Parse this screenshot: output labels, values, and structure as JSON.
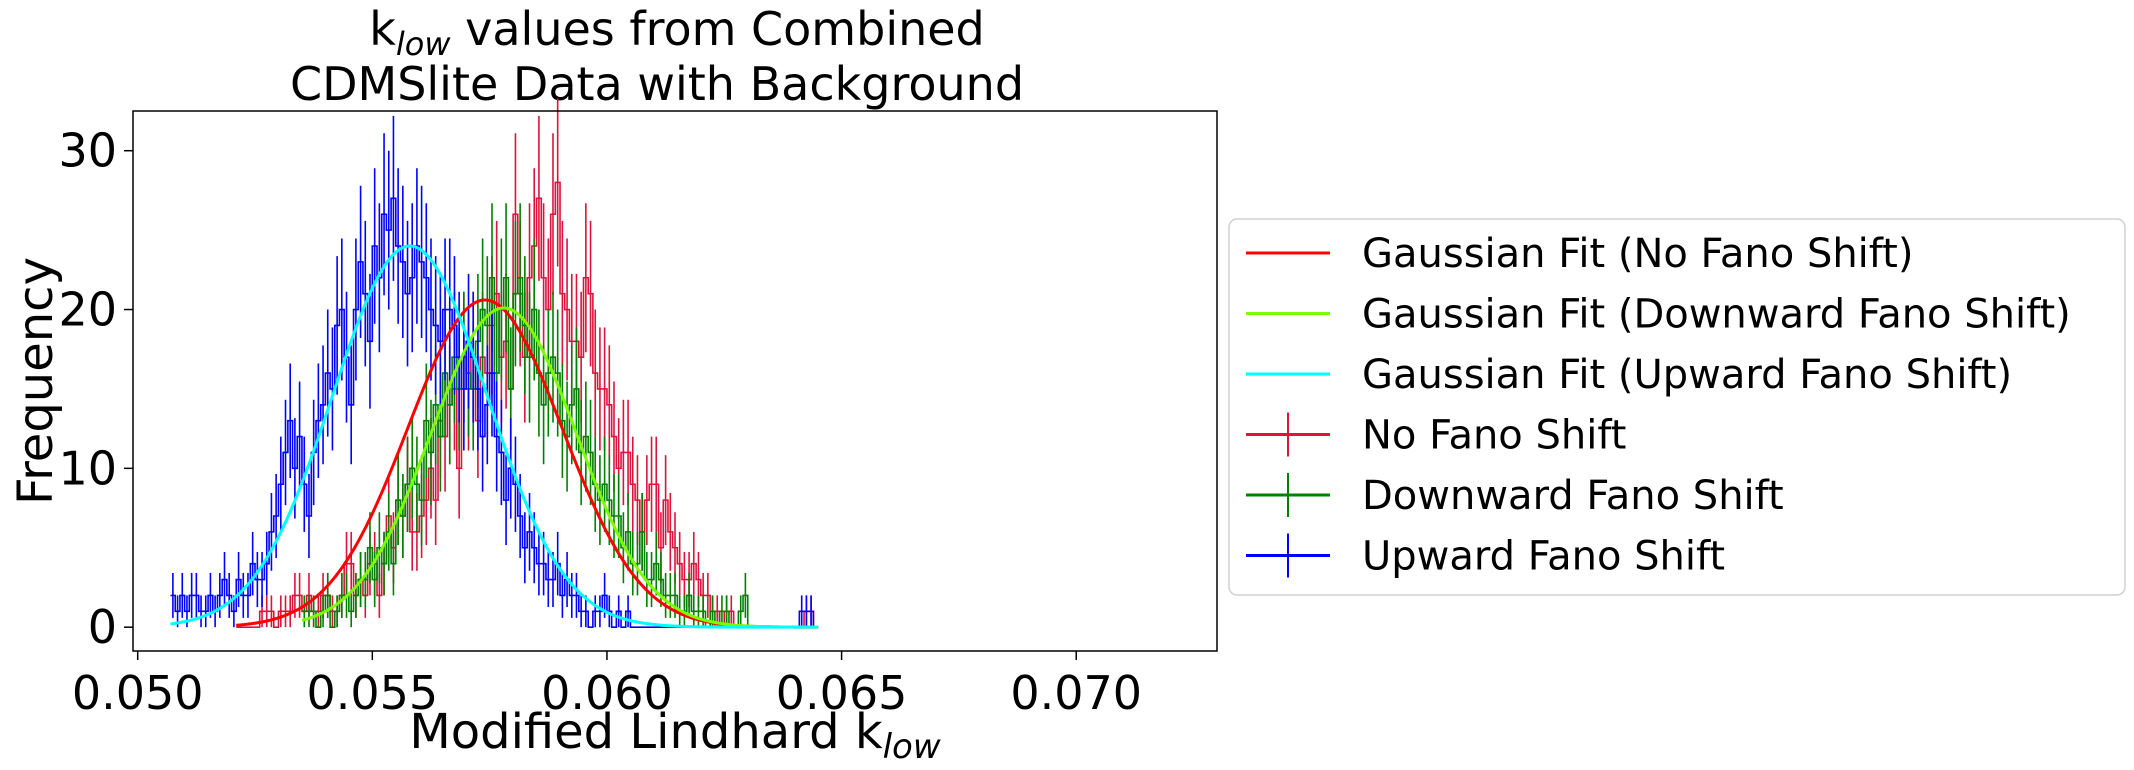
{
  "chart_data": {
    "type": "histogram",
    "title_line1_prefix": "k",
    "title_line1_sub": "low",
    "title_line1_suffix": " values from Combined",
    "title_line2": "CDMSlite Data with Background",
    "xlabel_prefix": "Modified Lindhard k",
    "xlabel_sub": "low",
    "ylabel": "Frequency",
    "xlim": [
      0.0499,
      0.073
    ],
    "ylim": [
      -1.5,
      32.5
    ],
    "xticks": [
      0.05,
      0.055,
      0.06,
      0.065,
      0.07
    ],
    "xtick_labels": [
      "0.050",
      "0.055",
      "0.060",
      "0.065",
      "0.070"
    ],
    "yticks": [
      0,
      10,
      20,
      30
    ],
    "ytick_labels": [
      "0",
      "10",
      "20",
      "30"
    ],
    "bin_width": 0.0001,
    "legend_position": "center-right outside",
    "gaussian_fits": [
      {
        "name": "Gaussian Fit (No Fano Shift)",
        "color": "#ff0000",
        "mean": 0.0574,
        "sigma": 0.00165,
        "amplitude": 20.6,
        "x_range": [
          0.0521,
          0.0645
        ]
      },
      {
        "name": "Gaussian Fit (Downward Fano Shift)",
        "color": "#7cfc00",
        "mean": 0.0578,
        "sigma": 0.00155,
        "amplitude": 20.1,
        "x_range": [
          0.0535,
          0.0645
        ]
      },
      {
        "name": "Gaussian Fit (Upward Fano Shift)",
        "color": "#00ffff",
        "mean": 0.0558,
        "sigma": 0.00165,
        "amplitude": 24.0,
        "x_range": [
          0.0507,
          0.0645
        ]
      }
    ],
    "histograms": [
      {
        "name": "No Fano Shift",
        "color": "#dc143c",
        "x_start": 0.0521,
        "values": [
          0,
          0,
          0,
          0,
          0,
          1,
          1,
          1,
          0,
          1,
          1,
          1,
          2,
          2,
          1,
          2,
          1,
          1,
          2,
          2,
          1,
          1,
          2,
          4,
          4,
          2,
          3,
          2,
          4,
          4,
          2,
          4,
          7,
          5,
          8,
          7,
          9,
          6,
          6,
          7,
          8,
          10,
          8,
          13,
          12,
          14,
          15,
          10,
          17,
          15,
          17,
          13,
          17,
          16,
          19,
          21,
          17,
          18,
          15,
          26,
          21,
          17,
          22,
          24,
          27,
          22,
          20,
          26,
          28,
          21,
          20,
          18,
          18,
          17,
          22,
          21,
          16,
          15,
          15,
          14,
          12,
          10,
          11,
          11,
          9,
          8,
          6,
          8,
          9,
          9,
          5,
          8,
          6,
          5,
          4,
          3,
          3,
          4,
          3,
          2,
          2,
          1,
          1,
          0,
          1,
          1,
          0,
          0,
          0,
          0,
          0,
          0,
          0,
          0,
          0,
          0,
          0,
          0,
          0,
          0,
          0,
          1,
          1,
          0
        ]
      },
      {
        "name": "Downward Fano Shift",
        "color": "#008000",
        "x_start": 0.0535,
        "values": [
          1,
          1,
          1,
          0,
          1,
          2,
          0,
          1,
          2,
          2,
          1,
          2,
          3,
          3,
          5,
          3,
          5,
          4,
          6,
          4,
          8,
          7,
          9,
          10,
          9,
          8,
          13,
          11,
          14,
          12,
          16,
          14,
          17,
          15,
          17,
          16,
          15,
          18,
          20,
          19,
          22,
          16,
          20,
          22,
          15,
          21,
          22,
          19,
          17,
          20,
          16,
          14,
          16,
          17,
          16,
          13,
          12,
          14,
          15,
          11,
          12,
          11,
          9,
          8,
          9,
          8,
          7,
          7,
          5,
          6,
          4,
          4,
          6,
          3,
          3,
          4,
          3,
          2,
          2,
          2,
          1,
          1,
          2,
          1,
          1,
          1,
          0,
          1,
          0,
          1,
          1,
          0,
          0,
          1,
          2,
          0,
          0,
          0,
          0,
          0,
          0,
          0,
          0,
          0,
          0,
          0,
          0,
          0,
          0,
          0
        ]
      },
      {
        "name": "Upward Fano Shift",
        "color": "#0000ff",
        "x_start": 0.0507,
        "values": [
          2,
          1,
          2,
          1,
          2,
          2,
          1,
          1,
          2,
          1,
          2,
          3,
          2,
          1,
          3,
          2,
          2,
          4,
          3,
          3,
          4,
          6,
          7,
          9,
          11,
          13,
          10,
          12,
          9,
          7,
          11,
          13,
          14,
          16,
          15,
          19,
          20,
          17,
          14,
          20,
          23,
          21,
          18,
          24,
          22,
          26,
          25,
          27,
          24,
          23,
          21,
          22,
          24,
          23,
          22,
          20,
          19,
          18,
          20,
          20,
          19,
          17,
          15,
          18,
          17,
          15,
          12,
          14,
          16,
          12,
          11,
          8,
          10,
          9,
          7,
          5,
          6,
          5,
          4,
          4,
          3,
          3,
          4,
          2,
          3,
          2,
          2,
          1,
          1,
          0,
          1,
          1,
          2,
          1,
          0,
          1,
          0,
          1,
          0,
          0,
          0,
          0,
          0,
          0,
          0,
          0,
          0,
          0,
          0,
          0,
          0,
          0,
          0,
          0,
          0,
          0,
          0,
          0,
          0,
          0,
          0,
          0,
          0,
          0,
          0,
          0,
          0,
          0,
          0,
          0,
          0,
          0,
          0,
          0,
          1,
          1,
          1,
          0
        ]
      }
    ]
  }
}
